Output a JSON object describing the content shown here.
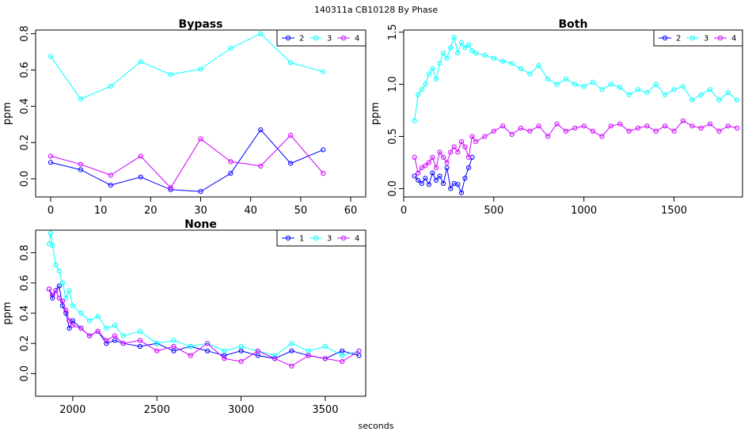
{
  "figure": {
    "title": "140311a    CB10128   By Phase",
    "xlabel": "seconds"
  },
  "chart_data": [
    {
      "type": "line",
      "title": "Bypass",
      "xlabel": "",
      "ylabel": "ppm",
      "xlim": [
        -3,
        63
      ],
      "ylim": [
        -0.1,
        0.82
      ],
      "xticks": [
        0,
        10,
        20,
        30,
        40,
        50,
        60
      ],
      "yticks": [
        0.0,
        0.2,
        0.4,
        0.6,
        0.8
      ],
      "ytick_labels": [
        "0.0",
        "0.2",
        "0.4",
        "0.6",
        "0.8"
      ],
      "legend_position": "top-right",
      "series": [
        {
          "name": "2",
          "color": "#0000ff",
          "x": [
            0,
            6,
            12,
            18,
            24,
            30,
            36,
            42,
            48,
            54.5
          ],
          "y": [
            0.09,
            0.05,
            -0.035,
            0.01,
            -0.06,
            -0.07,
            0.03,
            0.27,
            0.085,
            0.16
          ]
        },
        {
          "name": "3",
          "color": "#00ffff",
          "x": [
            0,
            6,
            12,
            18,
            24,
            30,
            36,
            42,
            48,
            54.5
          ],
          "y": [
            0.675,
            0.44,
            0.51,
            0.645,
            0.575,
            0.605,
            0.72,
            0.8,
            0.64,
            0.59
          ]
        },
        {
          "name": "4",
          "color": "#cc00ff",
          "x": [
            0,
            6,
            12,
            18,
            24,
            30,
            36,
            42,
            48,
            54.5
          ],
          "y": [
            0.125,
            0.08,
            0.02,
            0.125,
            -0.05,
            0.22,
            0.095,
            0.07,
            0.24,
            0.03
          ]
        }
      ]
    },
    {
      "type": "line",
      "title": "Both",
      "xlabel": "",
      "ylabel": "ppm",
      "xlim": [
        0,
        1880
      ],
      "ylim": [
        -0.08,
        1.52
      ],
      "xticks": [
        0,
        500,
        1000,
        1500
      ],
      "yticks": [
        0.0,
        0.5,
        1.0,
        1.5
      ],
      "ytick_labels": [
        "0.0",
        "0.5",
        "1.0",
        "1.5"
      ],
      "legend_position": "top-right",
      "series": [
        {
          "name": "2",
          "color": "#0000ff",
          "x": [
            60,
            80,
            100,
            120,
            140,
            160,
            180,
            200,
            220,
            240,
            260,
            280,
            300,
            320,
            340,
            360,
            380
          ],
          "y": [
            0.12,
            0.08,
            0.05,
            0.1,
            0.04,
            0.15,
            0.08,
            0.12,
            0.05,
            0.2,
            0.0,
            0.05,
            0.04,
            -0.04,
            0.1,
            0.2,
            0.3
          ]
        },
        {
          "name": "3",
          "color": "#00ffff",
          "x": [
            60,
            80,
            100,
            120,
            140,
            160,
            180,
            200,
            220,
            240,
            260,
            280,
            300,
            320,
            340,
            360,
            380,
            400,
            450,
            500,
            550,
            600,
            650,
            700,
            750,
            800,
            850,
            900,
            950,
            1000,
            1050,
            1100,
            1150,
            1200,
            1250,
            1300,
            1350,
            1400,
            1450,
            1500,
            1550,
            1600,
            1650,
            1700,
            1750,
            1800,
            1850
          ],
          "y": [
            0.65,
            0.9,
            0.95,
            1.0,
            1.1,
            1.15,
            1.05,
            1.2,
            1.3,
            1.25,
            1.35,
            1.45,
            1.3,
            1.4,
            1.35,
            1.38,
            1.32,
            1.3,
            1.28,
            1.25,
            1.22,
            1.2,
            1.15,
            1.1,
            1.18,
            1.05,
            1.0,
            1.05,
            1.0,
            0.98,
            1.02,
            0.95,
            1.0,
            0.97,
            0.9,
            0.95,
            0.92,
            1.0,
            0.9,
            0.95,
            0.98,
            0.85,
            0.9,
            0.95,
            0.85,
            0.92,
            0.85
          ]
        },
        {
          "name": "4",
          "color": "#cc00ff",
          "x": [
            60,
            80,
            100,
            120,
            140,
            160,
            180,
            200,
            220,
            240,
            260,
            280,
            300,
            320,
            340,
            360,
            380,
            400,
            450,
            500,
            550,
            600,
            650,
            700,
            750,
            800,
            850,
            900,
            950,
            1000,
            1050,
            1100,
            1150,
            1200,
            1250,
            1300,
            1350,
            1400,
            1450,
            1500,
            1550,
            1600,
            1650,
            1700,
            1750,
            1800,
            1850
          ],
          "y": [
            0.3,
            0.15,
            0.2,
            0.22,
            0.25,
            0.3,
            0.2,
            0.35,
            0.3,
            0.25,
            0.35,
            0.4,
            0.35,
            0.45,
            0.4,
            0.3,
            0.5,
            0.45,
            0.5,
            0.55,
            0.6,
            0.52,
            0.58,
            0.55,
            0.6,
            0.5,
            0.62,
            0.55,
            0.58,
            0.6,
            0.55,
            0.5,
            0.6,
            0.62,
            0.55,
            0.58,
            0.6,
            0.55,
            0.6,
            0.55,
            0.65,
            0.6,
            0.58,
            0.62,
            0.55,
            0.6,
            0.58
          ]
        }
      ]
    },
    {
      "type": "line",
      "title": "None",
      "xlabel": "seconds",
      "ylabel": "ppm",
      "xlim": [
        1780,
        3740
      ],
      "ylim": [
        -0.15,
        0.95
      ],
      "xticks": [
        2000,
        2500,
        3000,
        3500
      ],
      "yticks": [
        0.0,
        0.2,
        0.4,
        0.6,
        0.8
      ],
      "ytick_labels": [
        "0.0",
        "0.2",
        "0.4",
        "0.6",
        "0.8"
      ],
      "legend_position": "top-right",
      "series": [
        {
          "name": "1",
          "color": "#0000ff",
          "x": [
            1860,
            1880,
            1900,
            1920,
            1940,
            1960,
            1980,
            2000,
            2050,
            2100,
            2150,
            2200,
            2250,
            2300,
            2400,
            2500,
            2600,
            2700,
            2800,
            2900,
            3000,
            3100,
            3200,
            3300,
            3400,
            3500,
            3600,
            3700
          ],
          "y": [
            0.56,
            0.5,
            0.55,
            0.58,
            0.45,
            0.4,
            0.3,
            0.35,
            0.3,
            0.25,
            0.28,
            0.2,
            0.22,
            0.2,
            0.18,
            0.2,
            0.15,
            0.18,
            0.15,
            0.12,
            0.15,
            0.12,
            0.1,
            0.15,
            0.12,
            0.1,
            0.15,
            0.12
          ]
        },
        {
          "name": "3",
          "color": "#00ffff",
          "x": [
            1860,
            1870,
            1880,
            1900,
            1920,
            1940,
            1960,
            1980,
            2000,
            2050,
            2100,
            2150,
            2200,
            2250,
            2300,
            2400,
            2500,
            2600,
            2700,
            2800,
            2900,
            3000,
            3100,
            3200,
            3300,
            3400,
            3500,
            3600,
            3700
          ],
          "y": [
            0.86,
            0.93,
            0.85,
            0.72,
            0.68,
            0.6,
            0.5,
            0.55,
            0.45,
            0.4,
            0.35,
            0.38,
            0.3,
            0.32,
            0.25,
            0.28,
            0.2,
            0.22,
            0.18,
            0.2,
            0.15,
            0.18,
            0.15,
            0.12,
            0.2,
            0.15,
            0.18,
            0.12,
            0.15
          ]
        },
        {
          "name": "4",
          "color": "#cc00ff",
          "x": [
            1860,
            1880,
            1900,
            1920,
            1940,
            1960,
            1980,
            2000,
            2050,
            2100,
            2150,
            2200,
            2250,
            2300,
            2400,
            2500,
            2600,
            2700,
            2800,
            2900,
            3000,
            3100,
            3200,
            3300,
            3400,
            3500,
            3600,
            3700
          ],
          "y": [
            0.56,
            0.52,
            0.55,
            0.5,
            0.48,
            0.42,
            0.35,
            0.32,
            0.3,
            0.25,
            0.28,
            0.22,
            0.25,
            0.2,
            0.22,
            0.15,
            0.18,
            0.12,
            0.2,
            0.1,
            0.08,
            0.15,
            0.1,
            0.05,
            0.12,
            0.1,
            0.08,
            0.15
          ]
        }
      ]
    }
  ]
}
